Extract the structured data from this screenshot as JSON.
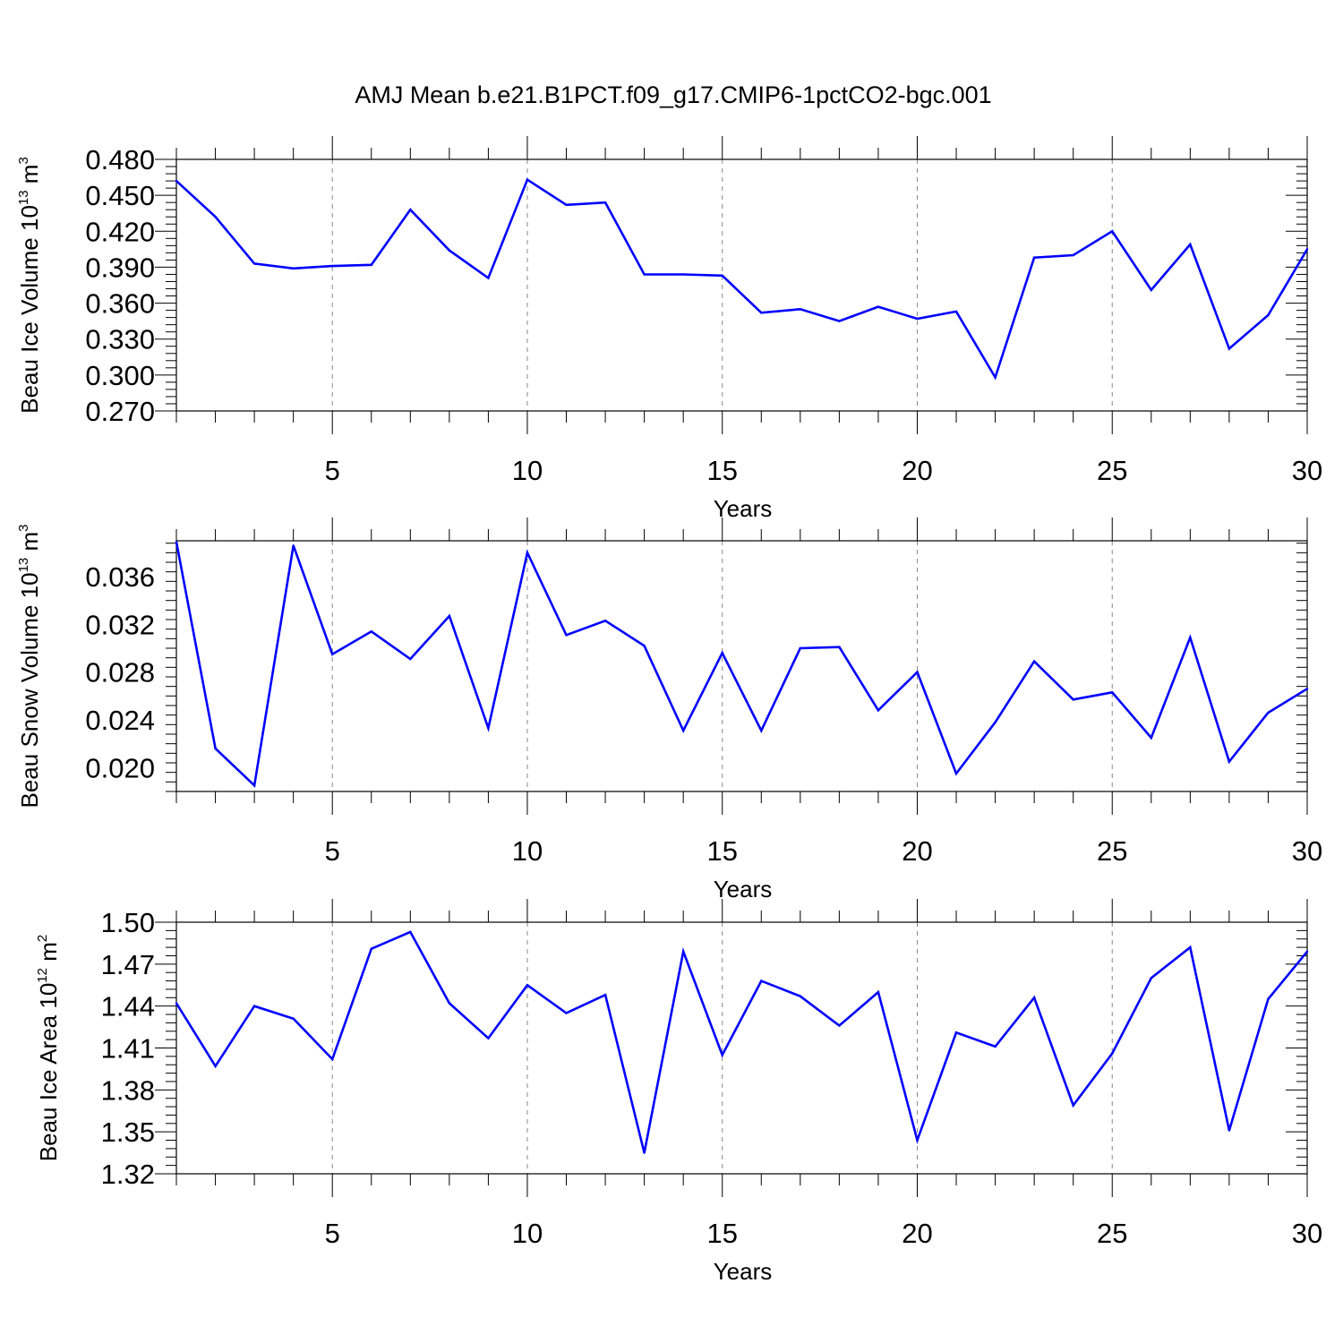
{
  "title": "AMJ Mean b.e21.B1PCT.f09_g17.CMIP6-1pctCO2-bgc.001",
  "colors": {
    "line": "#0000ff",
    "axis": "#000000",
    "grid": "#888888"
  },
  "chart_data": [
    {
      "type": "line",
      "id": "ice-volume",
      "ylabel_parts": {
        "base": "Beau Ice Volume 10",
        "exp": "13",
        "unit": " m",
        "unit_exp": "3"
      },
      "xlabel": "Years",
      "xlim": [
        1,
        30
      ],
      "ylim": [
        0.27,
        0.48
      ],
      "xticks": [
        5,
        10,
        15,
        20,
        25,
        30
      ],
      "yticks": [
        0.27,
        0.3,
        0.33,
        0.36,
        0.39,
        0.42,
        0.45,
        0.48
      ],
      "ytick_labels": [
        "0.270",
        "0.300",
        "0.330",
        "0.360",
        "0.390",
        "0.420",
        "0.450",
        "0.480"
      ],
      "x": [
        1,
        2,
        3,
        4,
        5,
        6,
        7,
        8,
        9,
        10,
        11,
        12,
        13,
        14,
        15,
        16,
        17,
        18,
        19,
        20,
        21,
        22,
        23,
        24,
        25,
        26,
        27,
        28,
        29,
        30
      ],
      "values": [
        0.462,
        0.432,
        0.393,
        0.389,
        0.391,
        0.392,
        0.438,
        0.404,
        0.381,
        0.463,
        0.442,
        0.444,
        0.384,
        0.384,
        0.383,
        0.352,
        0.355,
        0.345,
        0.357,
        0.347,
        0.353,
        0.298,
        0.398,
        0.4,
        0.42,
        0.371,
        0.409,
        0.322,
        0.35,
        0.405
      ],
      "grid": "vertical dashed at major x ticks"
    },
    {
      "type": "line",
      "id": "snow-volume",
      "ylabel_parts": {
        "base": "Beau Snow Volume 10",
        "exp": "13",
        "unit": " m",
        "unit_exp": "3"
      },
      "xlabel": "Years",
      "xlim": [
        1,
        30
      ],
      "ylim": [
        0.018,
        0.039
      ],
      "xticks": [
        5,
        10,
        15,
        20,
        25,
        30
      ],
      "yticks": [
        0.02,
        0.024,
        0.028,
        0.032,
        0.036
      ],
      "ytick_labels": [
        "0.020",
        "0.024",
        "0.028",
        "0.032",
        "0.036"
      ],
      "x": [
        1,
        2,
        3,
        4,
        5,
        6,
        7,
        8,
        9,
        10,
        11,
        12,
        13,
        14,
        15,
        16,
        17,
        18,
        19,
        20,
        21,
        22,
        23,
        24,
        25,
        26,
        27,
        28,
        29,
        30
      ],
      "values": [
        0.0389,
        0.0216,
        0.0185,
        0.0386,
        0.0295,
        0.0314,
        0.0291,
        0.0327,
        0.0233,
        0.038,
        0.0311,
        0.0323,
        0.0302,
        0.0231,
        0.0296,
        0.0231,
        0.03,
        0.0301,
        0.0248,
        0.028,
        0.0195,
        0.0238,
        0.0289,
        0.0257,
        0.0263,
        0.0225,
        0.0309,
        0.0205,
        0.0246,
        0.0266
      ],
      "grid": "vertical dashed at major x ticks"
    },
    {
      "type": "line",
      "id": "ice-area",
      "ylabel_parts": {
        "base": "Beau Ice Area 10",
        "exp": "12",
        "unit": " m",
        "unit_exp": "2"
      },
      "xlabel": "Years",
      "xlim": [
        1,
        30
      ],
      "ylim": [
        1.32,
        1.5
      ],
      "xticks": [
        5,
        10,
        15,
        20,
        25,
        30
      ],
      "yticks": [
        1.32,
        1.35,
        1.38,
        1.41,
        1.44,
        1.47,
        1.5
      ],
      "ytick_labels": [
        "1.32",
        "1.35",
        "1.38",
        "1.41",
        "1.44",
        "1.47",
        "1.50"
      ],
      "x": [
        1,
        2,
        3,
        4,
        5,
        6,
        7,
        8,
        9,
        10,
        11,
        12,
        13,
        14,
        15,
        16,
        17,
        18,
        19,
        20,
        21,
        22,
        23,
        24,
        25,
        26,
        27,
        28,
        29,
        30
      ],
      "values": [
        1.442,
        1.397,
        1.44,
        1.431,
        1.402,
        1.481,
        1.493,
        1.442,
        1.417,
        1.455,
        1.435,
        1.448,
        1.335,
        1.479,
        1.405,
        1.458,
        1.447,
        1.426,
        1.45,
        1.344,
        1.421,
        1.411,
        1.446,
        1.369,
        1.406,
        1.46,
        1.482,
        1.351,
        1.445,
        1.479
      ],
      "grid": "vertical dashed at major x ticks"
    }
  ]
}
